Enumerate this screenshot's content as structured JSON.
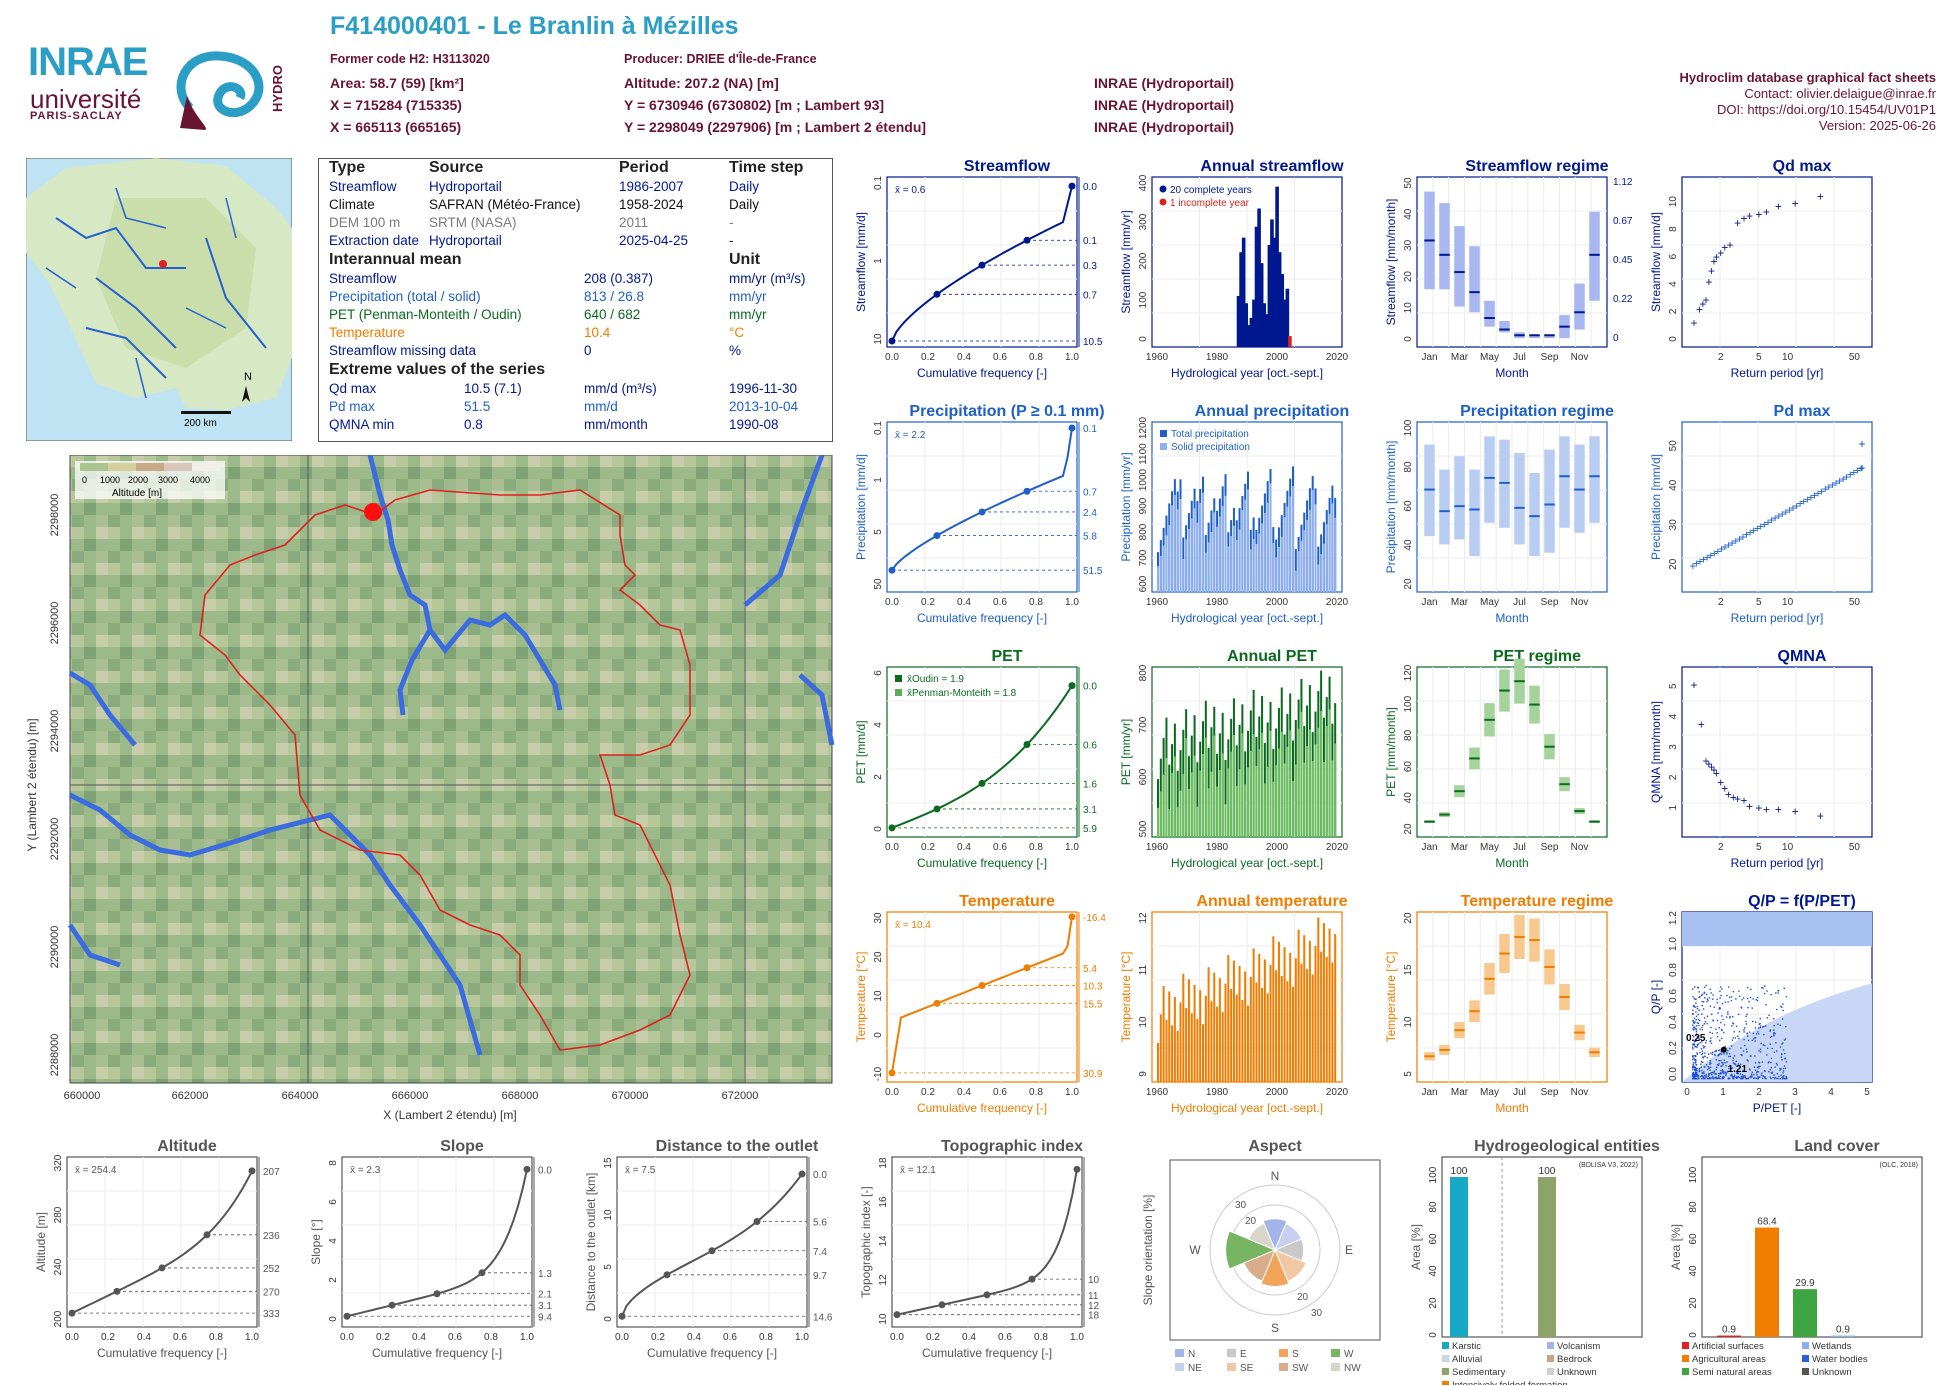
{
  "header": {
    "title": "F414000401 - Le Branlin à Mézilles",
    "former_code": "Former code H2: H3113020",
    "producer": "Producer: DRIEE d'Île-de-France",
    "area": "Area: 58.7 (59) [km²]",
    "altitude": "Altitude: 207.2 (NA) [m]",
    "x_l93": "X = 715284 (715335)",
    "y_l93": "Y = 6730946 (6730802) [m ; Lambert 93]",
    "x_l2": "X = 665113 (665165)",
    "y_l2": "Y = 2298049 (2297906) [m ; Lambert 2 étendu]",
    "inrae1": "INRAE (Hydroportail)",
    "inrae2": "INRAE (Hydroportail)",
    "inrae3": "INRAE (Hydroportail)",
    "db_title": "Hydroclim database graphical fact sheets",
    "contact": "Contact: olivier.delaigue@inrae.fr",
    "doi": "DOI: https://doi.org/10.15454/UV01P1",
    "version": "Version: 2025-06-26"
  },
  "logos": {
    "inrae": "INRAE",
    "univ": "université",
    "paris_saclay": "PARIS-SACLAY",
    "hydro": "HYDRO"
  },
  "minimap": {
    "north": "N",
    "scale": "200 km"
  },
  "info": {
    "head": [
      "Type",
      "Source",
      "Period",
      "Time step"
    ],
    "rows": [
      [
        "Streamflow",
        "Hydroportail",
        "1986-2007",
        "Daily"
      ],
      [
        "Climate",
        "SAFRAN (Météo-France)",
        "1958-2024",
        "Daily"
      ],
      [
        "DEM 100 m",
        "SRTM (NASA)",
        "2011",
        "-"
      ],
      [
        "Extraction date",
        "Hydroportail",
        "2025-04-25",
        "-"
      ]
    ],
    "interannual_title": "Interannual mean",
    "unit_title": "Unit",
    "means": [
      [
        "Streamflow",
        "208 (0.387)",
        "mm/yr (m³/s)"
      ],
      [
        "Precipitation (total / solid)",
        "813 / 26.8",
        "mm/yr"
      ],
      [
        "PET (Penman-Monteith / Oudin)",
        "640 / 682",
        "mm/yr"
      ],
      [
        "Temperature",
        "10.4",
        "°C"
      ],
      [
        "Streamflow missing data",
        "0",
        "%"
      ]
    ],
    "extreme_title": "Extreme values of the series",
    "extremes": [
      [
        "Qd max",
        "10.5 (7.1)",
        "mm/d (m³/s)",
        "1996-11-30"
      ],
      [
        "Pd max",
        "51.5",
        "mm/d",
        "2013-10-04"
      ],
      [
        "QMNA min",
        "0.8",
        "mm/month",
        "1990-08"
      ]
    ]
  },
  "map": {
    "legend_title": "Altitude [m]",
    "legend_ticks": [
      "0",
      "1000",
      "2000",
      "3000",
      "4000"
    ],
    "xlabel": "X (Lambert 2 étendu) [m]",
    "ylabel": "Y (Lambert 2 étendu) [m]",
    "xticks": [
      "660000",
      "662000",
      "664000",
      "666000",
      "668000",
      "670000",
      "672000"
    ],
    "yticks": [
      "2288000",
      "2290000",
      "2292000",
      "2294000",
      "2296000",
      "2298000"
    ]
  },
  "colors": {
    "stream": "#00188f",
    "precip": "#1e60c8",
    "pet": "#0a6b1f",
    "temp": "#f07c00",
    "grey": "#555555"
  },
  "chart_data": [
    {
      "id": "streamflow_cdf",
      "type": "line",
      "title": "Streamflow",
      "xlabel": "Cumulative frequency [-]",
      "ylabel": "Streamflow [mm/d]",
      "mean_label": "x̄ = 0.6",
      "right_ticks": [
        "10.5",
        "0.7",
        "0.3",
        "0.1",
        "0.0"
      ],
      "left_ticks": [
        "10",
        "1",
        "0.1"
      ],
      "xticks": [
        "0.0",
        "0.2",
        "0.4",
        "0.6",
        "0.8",
        "1.0"
      ]
    },
    {
      "id": "annual_streamflow",
      "type": "bar",
      "title": "Annual streamflow",
      "xlabel": "Hydrological year [oct.-sept.]",
      "ylabel": "Streamflow [mm/yr]",
      "legend": [
        "20 complete years",
        "1 incomplete year"
      ],
      "xticks": [
        "1960",
        "1980",
        "2000",
        "2020"
      ],
      "yticks": [
        "0",
        "100",
        "200",
        "300",
        "400"
      ],
      "x": [
        1986,
        1987,
        1988,
        1989,
        1990,
        1991,
        1992,
        1993,
        1994,
        1995,
        1996,
        1997,
        1998,
        1999,
        2000,
        2001,
        2002,
        2003,
        2004,
        2005,
        2006
      ],
      "values": [
        140,
        260,
        300,
        120,
        60,
        80,
        130,
        330,
        380,
        230,
        120,
        90,
        280,
        350,
        300,
        440,
        260,
        200,
        130,
        160,
        30
      ]
    },
    {
      "id": "streamflow_regime",
      "type": "bar",
      "title": "Streamflow regime",
      "xlabel": "Month",
      "ylabel": "Streamflow [mm/month]",
      "categories": [
        "Jan",
        "Feb",
        "Mar",
        "Apr",
        "May",
        "Jun",
        "Jul",
        "Aug",
        "Sep",
        "Oct",
        "Nov",
        "Dec"
      ],
      "median": [
        35,
        30,
        24,
        17,
        8,
        4,
        2,
        2,
        2,
        5,
        10,
        30
      ],
      "q10": [
        18,
        18,
        12,
        10,
        5,
        3,
        1,
        1,
        1,
        1,
        4,
        14
      ],
      "q90": [
        52,
        48,
        40,
        33,
        14,
        7,
        3,
        2,
        2,
        9,
        20,
        45
      ],
      "yticks": [
        "0",
        "10",
        "20",
        "30",
        "40",
        "50"
      ],
      "right_ticks": [
        "0",
        "0.22",
        "0.45",
        "0.67",
        "1.12"
      ]
    },
    {
      "id": "qd_max",
      "type": "scatter",
      "title": "Qd max",
      "xlabel": "Return period [yr]",
      "ylabel": "Streamflow [mm/d]",
      "x": [
        1.05,
        1.2,
        1.3,
        1.4,
        1.5,
        1.6,
        1.7,
        1.8,
        2,
        2.2,
        2.5,
        3,
        3.5,
        4,
        5,
        6,
        8,
        12,
        22
      ],
      "values": [
        1.3,
        2.3,
        2.7,
        3.0,
        4.3,
        5.1,
        5.8,
        6.1,
        6.4,
        6.8,
        7.0,
        8.6,
        8.9,
        9.1,
        9.2,
        9.4,
        9.8,
        10.0,
        10.5
      ],
      "yticks": [
        "0",
        "2",
        "4",
        "6",
        "8",
        "10"
      ],
      "xticks": [
        "2",
        "5",
        "10",
        "50"
      ]
    },
    {
      "id": "precip_cdf",
      "type": "line",
      "title": "Precipitation (P ≥ 0.1 mm)",
      "xlabel": "Cumulative frequency [-]",
      "ylabel": "Precipitation [mm/d]",
      "mean_label": "x̄ = 2.2",
      "right_ticks": [
        "51.5",
        "5.8",
        "2.4",
        "0.7",
        "0.1"
      ],
      "left_ticks": [
        "50",
        "5",
        "1",
        "0.1"
      ],
      "xticks": [
        "0.0",
        "0.2",
        "0.4",
        "0.6",
        "0.8",
        "1.0"
      ]
    },
    {
      "id": "annual_precip",
      "type": "bar",
      "title": "Annual precipitation",
      "xlabel": "Hydrological year [oct.-sept.]",
      "ylabel": "Precipitation [mm/yr]",
      "legend": [
        "Total precipitation",
        "Solid precipitation"
      ],
      "xticks": [
        "1960",
        "1980",
        "2000",
        "2020"
      ],
      "yticks": [
        "600",
        "700",
        "800",
        "900",
        "1000",
        "1100",
        "1200"
      ]
    },
    {
      "id": "precip_regime",
      "type": "bar",
      "title": "Precipitation regime",
      "xlabel": "Month",
      "ylabel": "Precipitation [mm/month]",
      "categories": [
        "Jan",
        "Feb",
        "Mar",
        "Apr",
        "May",
        "Jun",
        "Jul",
        "Aug",
        "Sep",
        "Oct",
        "Nov",
        "Dec"
      ],
      "median": [
        68,
        55,
        58,
        56,
        75,
        72,
        57,
        52,
        59,
        76,
        68,
        76
      ],
      "q10": [
        40,
        35,
        38,
        28,
        48,
        45,
        35,
        28,
        30,
        45,
        42,
        48
      ],
      "q90": [
        95,
        80,
        88,
        80,
        100,
        98,
        90,
        78,
        92,
        100,
        95,
        100
      ],
      "yticks": [
        "20",
        "40",
        "60",
        "80",
        "100"
      ]
    },
    {
      "id": "pd_max",
      "type": "scatter",
      "title": "Pd max",
      "xlabel": "Return period [yr]",
      "ylabel": "Precipitation [mm/d]",
      "yticks": [
        "20",
        "30",
        "40",
        "50"
      ],
      "xticks": [
        "2",
        "5",
        "10",
        "50"
      ]
    },
    {
      "id": "pet_cdf",
      "type": "line",
      "title": "PET",
      "xlabel": "Cumulative frequency [-]",
      "ylabel": "PET [mm/d]",
      "legend": [
        "x̄Oudin = 1.9",
        "x̄Penman-Monteith = 1.8"
      ],
      "right_ticks": [
        "5.9",
        "3.1",
        "1.6",
        "0.6",
        "0.0"
      ],
      "left_ticks": [
        "0",
        "2",
        "4",
        "6"
      ],
      "xticks": [
        "0.0",
        "0.2",
        "0.4",
        "0.6",
        "0.8",
        "1.0"
      ]
    },
    {
      "id": "annual_pet",
      "type": "bar",
      "title": "Annual PET",
      "xlabel": "Hydrological year [oct.-sept.]",
      "ylabel": "PET [mm/yr]",
      "xticks": [
        "1960",
        "1980",
        "2000",
        "2020"
      ],
      "yticks": [
        "500",
        "600",
        "700",
        "800"
      ]
    },
    {
      "id": "pet_regime",
      "type": "bar",
      "title": "PET regime",
      "xlabel": "Month",
      "ylabel": "PET [mm/month]",
      "categories": [
        "Jan",
        "Feb",
        "Mar",
        "Apr",
        "May",
        "Jun",
        "Jul",
        "Aug",
        "Sep",
        "Oct",
        "Nov",
        "Dec"
      ],
      "median": [
        8,
        14,
        34,
        62,
        95,
        120,
        128,
        108,
        72,
        40,
        17,
        8
      ],
      "yticks": [
        "20",
        "40",
        "60",
        "80",
        "100",
        "120"
      ]
    },
    {
      "id": "qmna",
      "type": "scatter",
      "title": "QMNA",
      "xlabel": "Return period [yr]",
      "ylabel": "QMNA [mm/month]",
      "x": [
        1.05,
        1.25,
        1.4,
        1.5,
        1.6,
        1.7,
        1.8,
        2,
        2.2,
        2.4,
        2.7,
        3,
        3.5,
        4,
        5,
        6,
        8,
        12,
        22
      ],
      "values": [
        5.1,
        3.8,
        2.6,
        2.5,
        2.4,
        2.3,
        2.2,
        1.9,
        1.7,
        1.5,
        1.4,
        1.35,
        1.3,
        1.1,
        1.05,
        1.0,
        1.0,
        0.95,
        0.8
      ],
      "yticks": [
        "1",
        "2",
        "3",
        "4",
        "5"
      ],
      "xticks": [
        "2",
        "5",
        "10",
        "50"
      ]
    },
    {
      "id": "temp_cdf",
      "type": "line",
      "title": "Temperature",
      "xlabel": "Cumulative frequency [-]",
      "ylabel": "Temperature [°C]",
      "mean_label": "x̄ = 10.4",
      "right_ticks": [
        "30.9",
        "15.5",
        "10.3",
        "5.4",
        "-16.4"
      ],
      "left_ticks": [
        "-10",
        "0",
        "10",
        "20",
        "30"
      ],
      "xticks": [
        "0.0",
        "0.2",
        "0.4",
        "0.6",
        "0.8",
        "1.0"
      ]
    },
    {
      "id": "annual_temp",
      "type": "bar",
      "title": "Annual temperature",
      "xlabel": "Hydrological year [oct.-sept.]",
      "ylabel": "Temperature [°C]",
      "xticks": [
        "1960",
        "1980",
        "2000",
        "2020"
      ],
      "yticks": [
        "9",
        "10",
        "11",
        "12"
      ]
    },
    {
      "id": "temp_regime",
      "type": "bar",
      "title": "Temperature regime",
      "xlabel": "Month",
      "ylabel": "Temperature [°C]",
      "categories": [
        "Jan",
        "Feb",
        "Mar",
        "Apr",
        "May",
        "Jun",
        "Jul",
        "Aug",
        "Sep",
        "Oct",
        "Nov",
        "Dec"
      ],
      "median": [
        3.5,
        4.3,
        6.8,
        9.2,
        13.3,
        16.5,
        18.6,
        18.2,
        14.8,
        11.0,
        6.5,
        4.0
      ],
      "yticks": [
        "5",
        "10",
        "15",
        "20"
      ]
    },
    {
      "id": "qp_ppet",
      "type": "scatter",
      "title": "Q/P = f(P/PET)",
      "xlabel": "P/PET [-]",
      "ylabel": "Q/P [-]",
      "annotations": [
        "0.25",
        "1.21"
      ],
      "yticks": [
        "0.0",
        "0.2",
        "0.4",
        "0.6",
        "0.8",
        "1.0",
        "1.2"
      ],
      "xticks": [
        "0",
        "1",
        "2",
        "3",
        "4",
        "5"
      ]
    },
    {
      "id": "altitude_cdf",
      "type": "line",
      "title": "Altitude",
      "xlabel": "Cumulative frequency [-]",
      "ylabel": "Altitude [m]",
      "mean_label": "x̄ = 254.4",
      "right_ticks": [
        "333",
        "270",
        "252",
        "236",
        "207"
      ],
      "left_ticks": [
        "200",
        "240",
        "280",
        "320"
      ],
      "xticks": [
        "0.0",
        "0.2",
        "0.4",
        "0.6",
        "0.8",
        "1.0"
      ]
    },
    {
      "id": "slope_cdf",
      "type": "line",
      "title": "Slope",
      "xlabel": "Cumulative frequency [-]",
      "ylabel": "Slope [°]",
      "mean_label": "x̄ = 2.3",
      "right_ticks": [
        "9.4",
        "3.1",
        "2.1",
        "1.3",
        "0.0"
      ],
      "left_ticks": [
        "0",
        "2",
        "4",
        "6",
        "8"
      ],
      "xticks": [
        "0.0",
        "0.2",
        "0.4",
        "0.6",
        "0.8",
        "1.0"
      ]
    },
    {
      "id": "distance_cdf",
      "type": "line",
      "title": "Distance to the outlet",
      "xlabel": "Cumulative frequency [-]",
      "ylabel": "Distance to the outlet [km]",
      "mean_label": "x̄ = 7.5",
      "right_ticks": [
        "14.6",
        "9.7",
        "7.4",
        "5.6",
        "0.0"
      ],
      "left_ticks": [
        "0",
        "5",
        "10",
        "15"
      ],
      "xticks": [
        "0.0",
        "0.2",
        "0.4",
        "0.6",
        "0.8",
        "1.0"
      ]
    },
    {
      "id": "topo_cdf",
      "type": "line",
      "title": "Topographic index",
      "xlabel": "Cumulative frequency [-]",
      "ylabel": "Topographic index [-]",
      "mean_label": "x̄ = 12.1",
      "right_ticks": [
        "18",
        "12",
        "11",
        "10"
      ],
      "left_ticks": [
        "10",
        "12",
        "14",
        "16",
        "18"
      ],
      "xticks": [
        "0.0",
        "0.2",
        "0.4",
        "0.6",
        "0.8",
        "1.0"
      ]
    },
    {
      "id": "aspect",
      "type": "pie",
      "title": "Aspect",
      "ylabel": "Slope orientation [%]",
      "directions": [
        "N",
        "NE",
        "E",
        "SE",
        "S",
        "SW",
        "W",
        "NW"
      ],
      "values": [
        12,
        11,
        11,
        13,
        14,
        13,
        19,
        11
      ],
      "rings": [
        "10",
        "20",
        "30"
      ],
      "legend": [
        "N",
        "E",
        "S",
        "W",
        "NE",
        "SE",
        "SW",
        "NW"
      ]
    },
    {
      "id": "hydrogeology",
      "type": "bar",
      "title": "Hydrogeological entities",
      "ylabel": "Area [%]",
      "note": "(BDLISA V3, 2022)",
      "categories": [
        "Karstic",
        "Volcanism"
      ],
      "values": [
        100,
        100
      ],
      "legend": [
        "Karstic",
        "Volcanism",
        "Alluvial",
        "Bedrock",
        "Sedimentary",
        "Unknown",
        "Intensively folded formation"
      ],
      "yticks": [
        "0",
        "20",
        "40",
        "60",
        "80",
        "100"
      ]
    },
    {
      "id": "land_cover",
      "type": "bar",
      "title": "Land cover",
      "ylabel": "Area [%]",
      "note": "(OLC, 2018)",
      "categories": [
        "Artificial surfaces",
        "Agricultural areas",
        "Semi natural areas",
        "Wetlands",
        "Water bodies"
      ],
      "values": [
        0.9,
        68.4,
        29.9,
        0.9,
        0
      ],
      "labels": [
        "0.9",
        "68.4",
        "29.9",
        "0.9"
      ],
      "legend": [
        "Artificial surfaces",
        "Wetlands",
        "Agricultural areas",
        "Water bodies",
        "Semi natural areas",
        "Unknown"
      ],
      "yticks": [
        "0",
        "20",
        "40",
        "60",
        "80",
        "100"
      ]
    }
  ]
}
